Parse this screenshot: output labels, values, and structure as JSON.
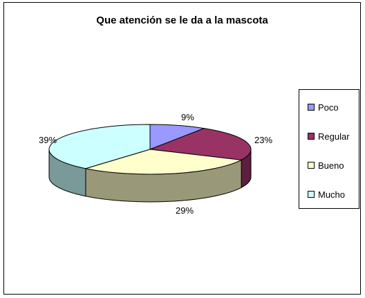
{
  "chart_data": {
    "type": "pie",
    "title": "Que atención se le da a la mascota",
    "categories": [
      "Poco",
      "Regular",
      "Bueno",
      "Mucho"
    ],
    "values": [
      9,
      23,
      29,
      39
    ],
    "labels": [
      "9%",
      "23%",
      "29%",
      "39%"
    ],
    "legend_position": "right",
    "three_d": true
  },
  "colors": {
    "top": [
      "#9999ff",
      "#993366",
      "#ffffcc",
      "#ccffff"
    ],
    "side": [
      "#5c5c99",
      "#5c1f3d",
      "#99997a",
      "#7a9999"
    ]
  }
}
